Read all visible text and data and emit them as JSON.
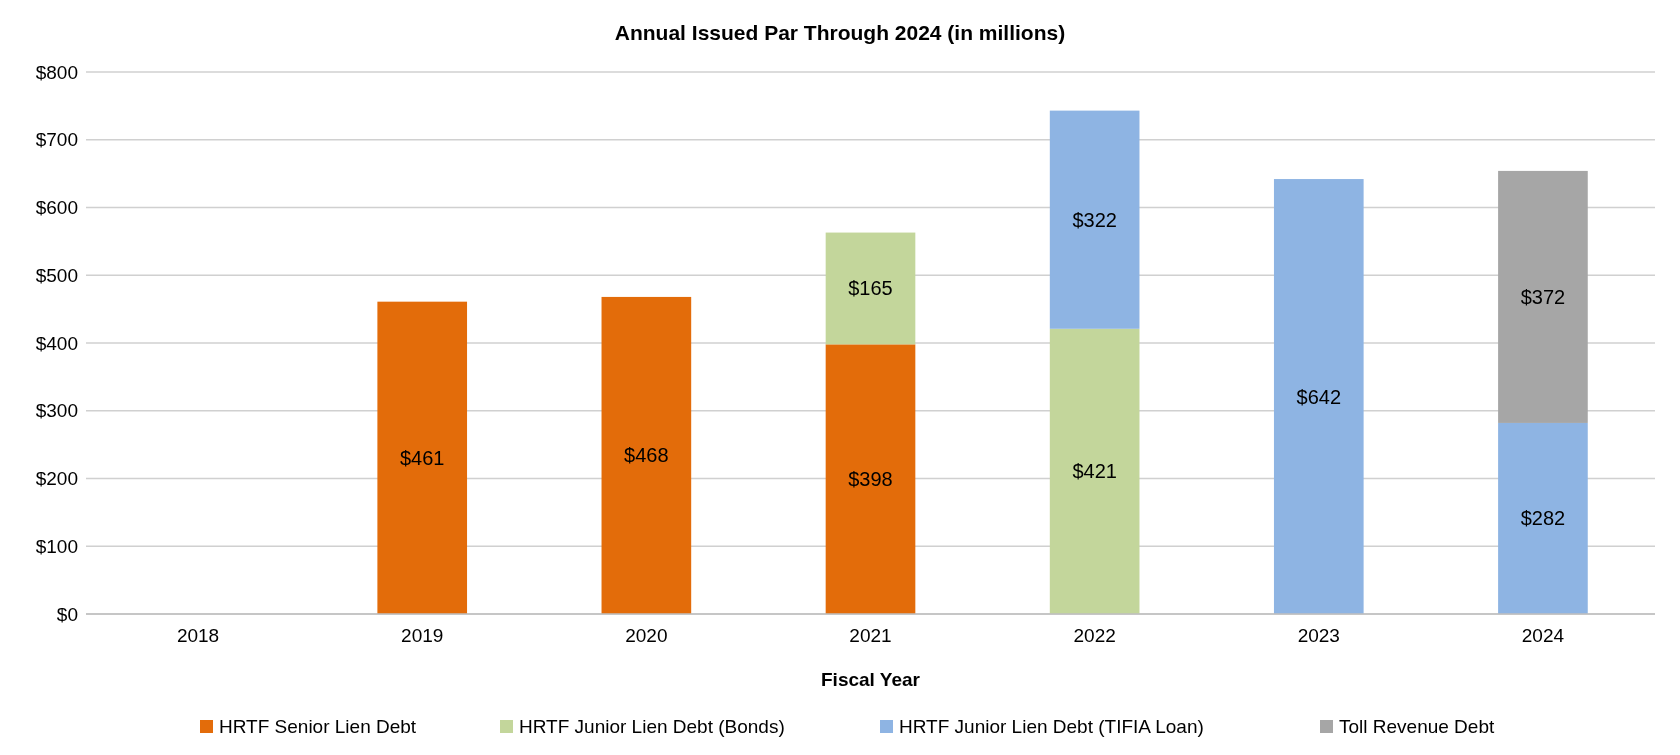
{
  "chart_data": {
    "type": "bar",
    "title": "Annual Issued Par Through 2024 (in millions)",
    "xlabel": "Fiscal Year",
    "categories": [
      "2018",
      "2019",
      "2020",
      "2021",
      "2022",
      "2023",
      "2024"
    ],
    "stacked": true,
    "data_labels": true,
    "grid": "y",
    "legend": "bottom",
    "ylim": [
      0,
      800
    ],
    "yticks": [
      {
        "value": 0,
        "label": "$0"
      },
      {
        "value": 100,
        "label": "$100"
      },
      {
        "value": 200,
        "label": "$200"
      },
      {
        "value": 300,
        "label": "$300"
      },
      {
        "value": 400,
        "label": "$400"
      },
      {
        "value": 500,
        "label": "$500"
      },
      {
        "value": 600,
        "label": "$600"
      },
      {
        "value": 700,
        "label": "$700"
      },
      {
        "value": 800,
        "label": "$800"
      }
    ],
    "series": [
      {
        "name": "HRTF Senior Lien Debt",
        "color": "#e36c0a",
        "values": [
          null,
          461,
          468,
          398,
          null,
          null,
          null
        ],
        "value_labels": [
          null,
          "$461",
          "$468",
          "$398",
          null,
          null,
          null
        ]
      },
      {
        "name": "HRTF Junior Lien Debt (Bonds)",
        "color": "#c3d69b",
        "values": [
          null,
          null,
          null,
          165,
          421,
          null,
          null
        ],
        "value_labels": [
          null,
          null,
          null,
          "$165",
          "$421",
          null,
          null
        ]
      },
      {
        "name": "HRTF Junior Lien Debt (TIFIA Loan)",
        "color": "#8eb4e3",
        "values": [
          null,
          null,
          null,
          null,
          322,
          642,
          282
        ],
        "value_labels": [
          null,
          null,
          null,
          null,
          "$322",
          "$642",
          "$282"
        ]
      },
      {
        "name": "Toll Revenue Debt",
        "color": "#a6a6a6",
        "values": [
          null,
          null,
          null,
          null,
          null,
          null,
          372
        ],
        "value_labels": [
          null,
          null,
          null,
          null,
          null,
          null,
          "$372"
        ]
      }
    ]
  }
}
